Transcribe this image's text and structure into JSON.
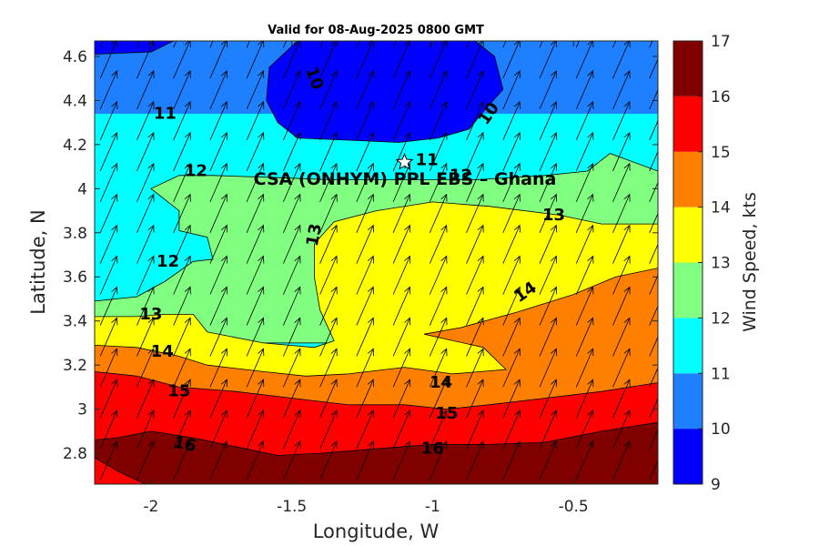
{
  "chart_data": {
    "type": "heatmap",
    "subtype": "filled-contour-with-wind-vectors",
    "title": "Valid for 08-Aug-2025 0800 GMT",
    "xlabel": "Longitude, W",
    "ylabel": "Latitude, N",
    "xlim": [
      -2.2,
      -0.2
    ],
    "ylim": [
      2.66,
      4.67
    ],
    "xticks": [
      -2,
      -1.5,
      -1,
      -0.5
    ],
    "xtick_labels": [
      "-2",
      "-1.5",
      "-1",
      "-0.5"
    ],
    "yticks": [
      2.8,
      3,
      3.2,
      3.4,
      3.6,
      3.8,
      4,
      4.2,
      4.4,
      4.6
    ],
    "ytick_labels": [
      "2.8",
      "3",
      "3.2",
      "3.4",
      "3.6",
      "3.8",
      "4",
      "4.2",
      "4.4",
      "4.6"
    ],
    "site": {
      "label": "CSA (ONHYM) PPL EBS  – Ghana",
      "lon": -1.1,
      "lat": 4.12
    },
    "colorbar": {
      "label": "Wind Speed, kts",
      "levels": [
        9,
        10,
        11,
        12,
        13,
        14,
        15,
        16,
        17
      ],
      "tick_labels": [
        "9",
        "10",
        "11",
        "12",
        "13",
        "14",
        "15",
        "16",
        "17"
      ],
      "colors": [
        "#0000ff",
        "#1e7fff",
        "#00ffff",
        "#80ff80",
        "#ffff00",
        "#ff8000",
        "#ff0000",
        "#800000"
      ]
    },
    "contour_bands": [
      {
        "min": 9,
        "max": 10,
        "poly": [
          [
            -1.48,
            4.67
          ],
          [
            -0.85,
            4.67
          ],
          [
            -0.78,
            4.6
          ],
          [
            -0.75,
            4.45
          ],
          [
            -0.82,
            4.35
          ],
          [
            -0.87,
            4.27
          ],
          [
            -0.98,
            4.23
          ],
          [
            -1.12,
            4.21
          ],
          [
            -1.3,
            4.22
          ],
          [
            -1.48,
            4.23
          ],
          [
            -1.55,
            4.3
          ],
          [
            -1.59,
            4.4
          ],
          [
            -1.58,
            4.55
          ]
        ]
      },
      {
        "min": 9,
        "max": 10,
        "poly": [
          [
            -2.2,
            4.67
          ],
          [
            -1.92,
            4.67
          ],
          [
            -2.0,
            4.62
          ],
          [
            -2.2,
            4.61
          ]
        ]
      },
      {
        "min": 12,
        "max": 13,
        "poly": [
          [
            -2.2,
            3.49
          ],
          [
            -2.05,
            3.51
          ],
          [
            -1.95,
            3.58
          ],
          [
            -1.85,
            3.67
          ],
          [
            -1.78,
            3.68
          ],
          [
            -1.8,
            3.78
          ],
          [
            -1.9,
            3.81
          ],
          [
            -1.9,
            3.9
          ],
          [
            -2.0,
            4.0
          ],
          [
            -1.9,
            4.06
          ],
          [
            -1.78,
            4.06
          ],
          [
            -1.55,
            4.05
          ],
          [
            -1.35,
            4.04
          ],
          [
            -1.1,
            4.04
          ],
          [
            -0.85,
            4.04
          ],
          [
            -0.6,
            4.06
          ],
          [
            -0.45,
            4.08
          ],
          [
            -0.37,
            4.16
          ],
          [
            -0.2,
            4.08
          ],
          [
            -0.2,
            3.3
          ],
          [
            -1.0,
            3.3
          ],
          [
            -2.2,
            3.3
          ]
        ]
      },
      {
        "min": 13,
        "max": 14,
        "poly": [
          [
            -2.2,
            3.42
          ],
          [
            -2.05,
            3.42
          ],
          [
            -1.95,
            3.43
          ],
          [
            -1.85,
            3.43
          ],
          [
            -1.8,
            3.35
          ],
          [
            -1.6,
            3.3
          ],
          [
            -1.42,
            3.28
          ],
          [
            -1.35,
            3.31
          ],
          [
            -1.4,
            3.45
          ],
          [
            -1.42,
            3.6
          ],
          [
            -1.42,
            3.75
          ],
          [
            -1.35,
            3.85
          ],
          [
            -1.2,
            3.9
          ],
          [
            -1.0,
            3.94
          ],
          [
            -0.8,
            3.92
          ],
          [
            -0.55,
            3.88
          ],
          [
            -0.4,
            3.84
          ],
          [
            -0.2,
            3.84
          ],
          [
            -0.2,
            3.0
          ],
          [
            -2.2,
            3.0
          ]
        ]
      },
      {
        "min": 14,
        "max": 15,
        "poly": [
          [
            -2.2,
            3.29
          ],
          [
            -2.05,
            3.28
          ],
          [
            -1.9,
            3.24
          ],
          [
            -1.8,
            3.2
          ],
          [
            -1.6,
            3.17
          ],
          [
            -1.45,
            3.15
          ],
          [
            -1.3,
            3.16
          ],
          [
            -1.1,
            3.19
          ],
          [
            -0.93,
            3.16
          ],
          [
            -0.83,
            3.17
          ],
          [
            -0.74,
            3.18
          ],
          [
            -0.82,
            3.28
          ],
          [
            -0.96,
            3.32
          ],
          [
            -1.03,
            3.34
          ],
          [
            -0.9,
            3.37
          ],
          [
            -0.7,
            3.44
          ],
          [
            -0.5,
            3.52
          ],
          [
            -0.35,
            3.6
          ],
          [
            -0.2,
            3.64
          ],
          [
            -0.2,
            2.66
          ],
          [
            -2.2,
            2.66
          ]
        ]
      },
      {
        "min": 15,
        "max": 16,
        "poly": [
          [
            -2.2,
            3.17
          ],
          [
            -2.05,
            3.15
          ],
          [
            -1.9,
            3.1
          ],
          [
            -1.7,
            3.08
          ],
          [
            -1.5,
            3.05
          ],
          [
            -1.3,
            3.02
          ],
          [
            -1.1,
            3.02
          ],
          [
            -0.95,
            3.0
          ],
          [
            -0.8,
            3.02
          ],
          [
            -0.6,
            3.05
          ],
          [
            -0.4,
            3.08
          ],
          [
            -0.2,
            3.12
          ],
          [
            -0.2,
            2.66
          ],
          [
            -2.2,
            2.66
          ]
        ]
      },
      {
        "min": 16,
        "max": 17,
        "poly": [
          [
            -2.2,
            2.86
          ],
          [
            -2.12,
            2.87
          ],
          [
            -2.0,
            2.9
          ],
          [
            -1.85,
            2.87
          ],
          [
            -1.7,
            2.83
          ],
          [
            -1.55,
            2.79
          ],
          [
            -1.4,
            2.8
          ],
          [
            -1.2,
            2.82
          ],
          [
            -1.0,
            2.84
          ],
          [
            -0.8,
            2.84
          ],
          [
            -0.6,
            2.85
          ],
          [
            -0.4,
            2.9
          ],
          [
            -0.2,
            2.94
          ],
          [
            -0.2,
            2.66
          ],
          [
            -2.2,
            2.66
          ]
        ]
      },
      {
        "min": 15,
        "max": 16,
        "poly": [
          [
            -2.2,
            2.78
          ],
          [
            -2.12,
            2.72
          ],
          [
            -2.02,
            2.66
          ],
          [
            -2.2,
            2.66
          ]
        ]
      }
    ],
    "contour_labels": [
      {
        "text": "10",
        "lon": -1.42,
        "lat": 4.5,
        "rotate": 70
      },
      {
        "text": "10",
        "lon": -0.8,
        "lat": 4.34,
        "rotate": -55
      },
      {
        "text": "11",
        "lon": -1.95,
        "lat": 4.34,
        "rotate": 0
      },
      {
        "text": "11",
        "lon": -1.02,
        "lat": 4.13,
        "rotate": 0
      },
      {
        "text": "12",
        "lon": -1.84,
        "lat": 4.08,
        "rotate": 0
      },
      {
        "text": "12",
        "lon": -1.94,
        "lat": 3.67,
        "rotate": 0
      },
      {
        "text": "12",
        "lon": -0.9,
        "lat": 4.06,
        "rotate": 0
      },
      {
        "text": "13",
        "lon": -1.42,
        "lat": 3.79,
        "rotate": -80
      },
      {
        "text": "13",
        "lon": -0.57,
        "lat": 3.88,
        "rotate": 0
      },
      {
        "text": "13",
        "lon": -2.0,
        "lat": 3.43,
        "rotate": 0
      },
      {
        "text": "14",
        "lon": -1.96,
        "lat": 3.26,
        "rotate": 0
      },
      {
        "text": "14",
        "lon": -0.97,
        "lat": 3.12,
        "rotate": 0
      },
      {
        "text": "14",
        "lon": -0.67,
        "lat": 3.53,
        "rotate": -35
      },
      {
        "text": "15",
        "lon": -1.9,
        "lat": 3.08,
        "rotate": 0
      },
      {
        "text": "15",
        "lon": -0.95,
        "lat": 2.98,
        "rotate": 0
      },
      {
        "text": "16",
        "lon": -1.88,
        "lat": 2.84,
        "rotate": 12
      },
      {
        "text": "16",
        "lon": -1.0,
        "lat": 2.82,
        "rotate": 0
      }
    ],
    "wind_vectors": {
      "u_kts": 5.5,
      "v_kts": 12.6,
      "lon_step": 0.13,
      "lat_step": 0.14
    },
    "grid": false,
    "legend": "colorbar-right"
  }
}
